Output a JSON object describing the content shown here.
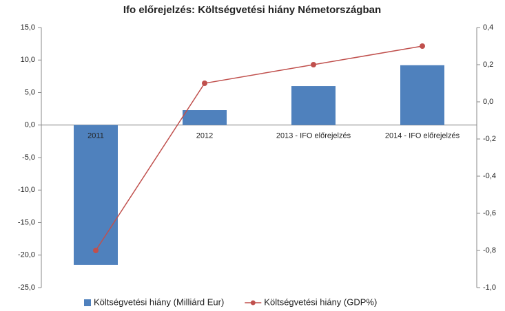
{
  "chart_data": {
    "type": "bar",
    "title": "Ifo előrejelzés: Költségvetési hiány Németországban",
    "categories": [
      "2011",
      "2012",
      "2013 - IFO előrejelzés",
      "2014 - IFO előrejelzés"
    ],
    "series": [
      {
        "name": "Költségvetési hiány (Milliárd Eur)",
        "color": "#4f81bd",
        "values": [
          -21.5,
          2.3,
          6.0,
          9.2
        ]
      },
      {
        "name": "Költségvetési hiány (GDP%)",
        "color": "#c0504d",
        "type": "line",
        "axis": "y2",
        "values": [
          -0.8,
          0.1,
          0.2,
          0.3
        ]
      }
    ],
    "ylim": [
      -25,
      15
    ],
    "yticks": [
      {
        "value": -25,
        "label": "-25,0"
      },
      {
        "value": -20,
        "label": "-20,0"
      },
      {
        "value": -15,
        "label": "-15,0"
      },
      {
        "value": -10,
        "label": "-10,0"
      },
      {
        "value": -5,
        "label": "-5,0"
      },
      {
        "value": 0,
        "label": "0,0"
      },
      {
        "value": 5,
        "label": "5,0"
      },
      {
        "value": 10,
        "label": "10,0"
      },
      {
        "value": 15,
        "label": "15,0"
      }
    ],
    "y2lim": [
      -1.0,
      0.4
    ],
    "y2ticks": [
      {
        "value": -1.0,
        "label": "-1,0"
      },
      {
        "value": -0.8,
        "label": "-0,8"
      },
      {
        "value": -0.6,
        "label": "-0,6"
      },
      {
        "value": -0.4,
        "label": "-0,4"
      },
      {
        "value": -0.2,
        "label": "-0,2"
      },
      {
        "value": 0,
        "label": "0,0"
      },
      {
        "value": 0.2,
        "label": "0,2"
      },
      {
        "value": 0.4,
        "label": "0,4"
      }
    ],
    "legend": "bottom"
  }
}
